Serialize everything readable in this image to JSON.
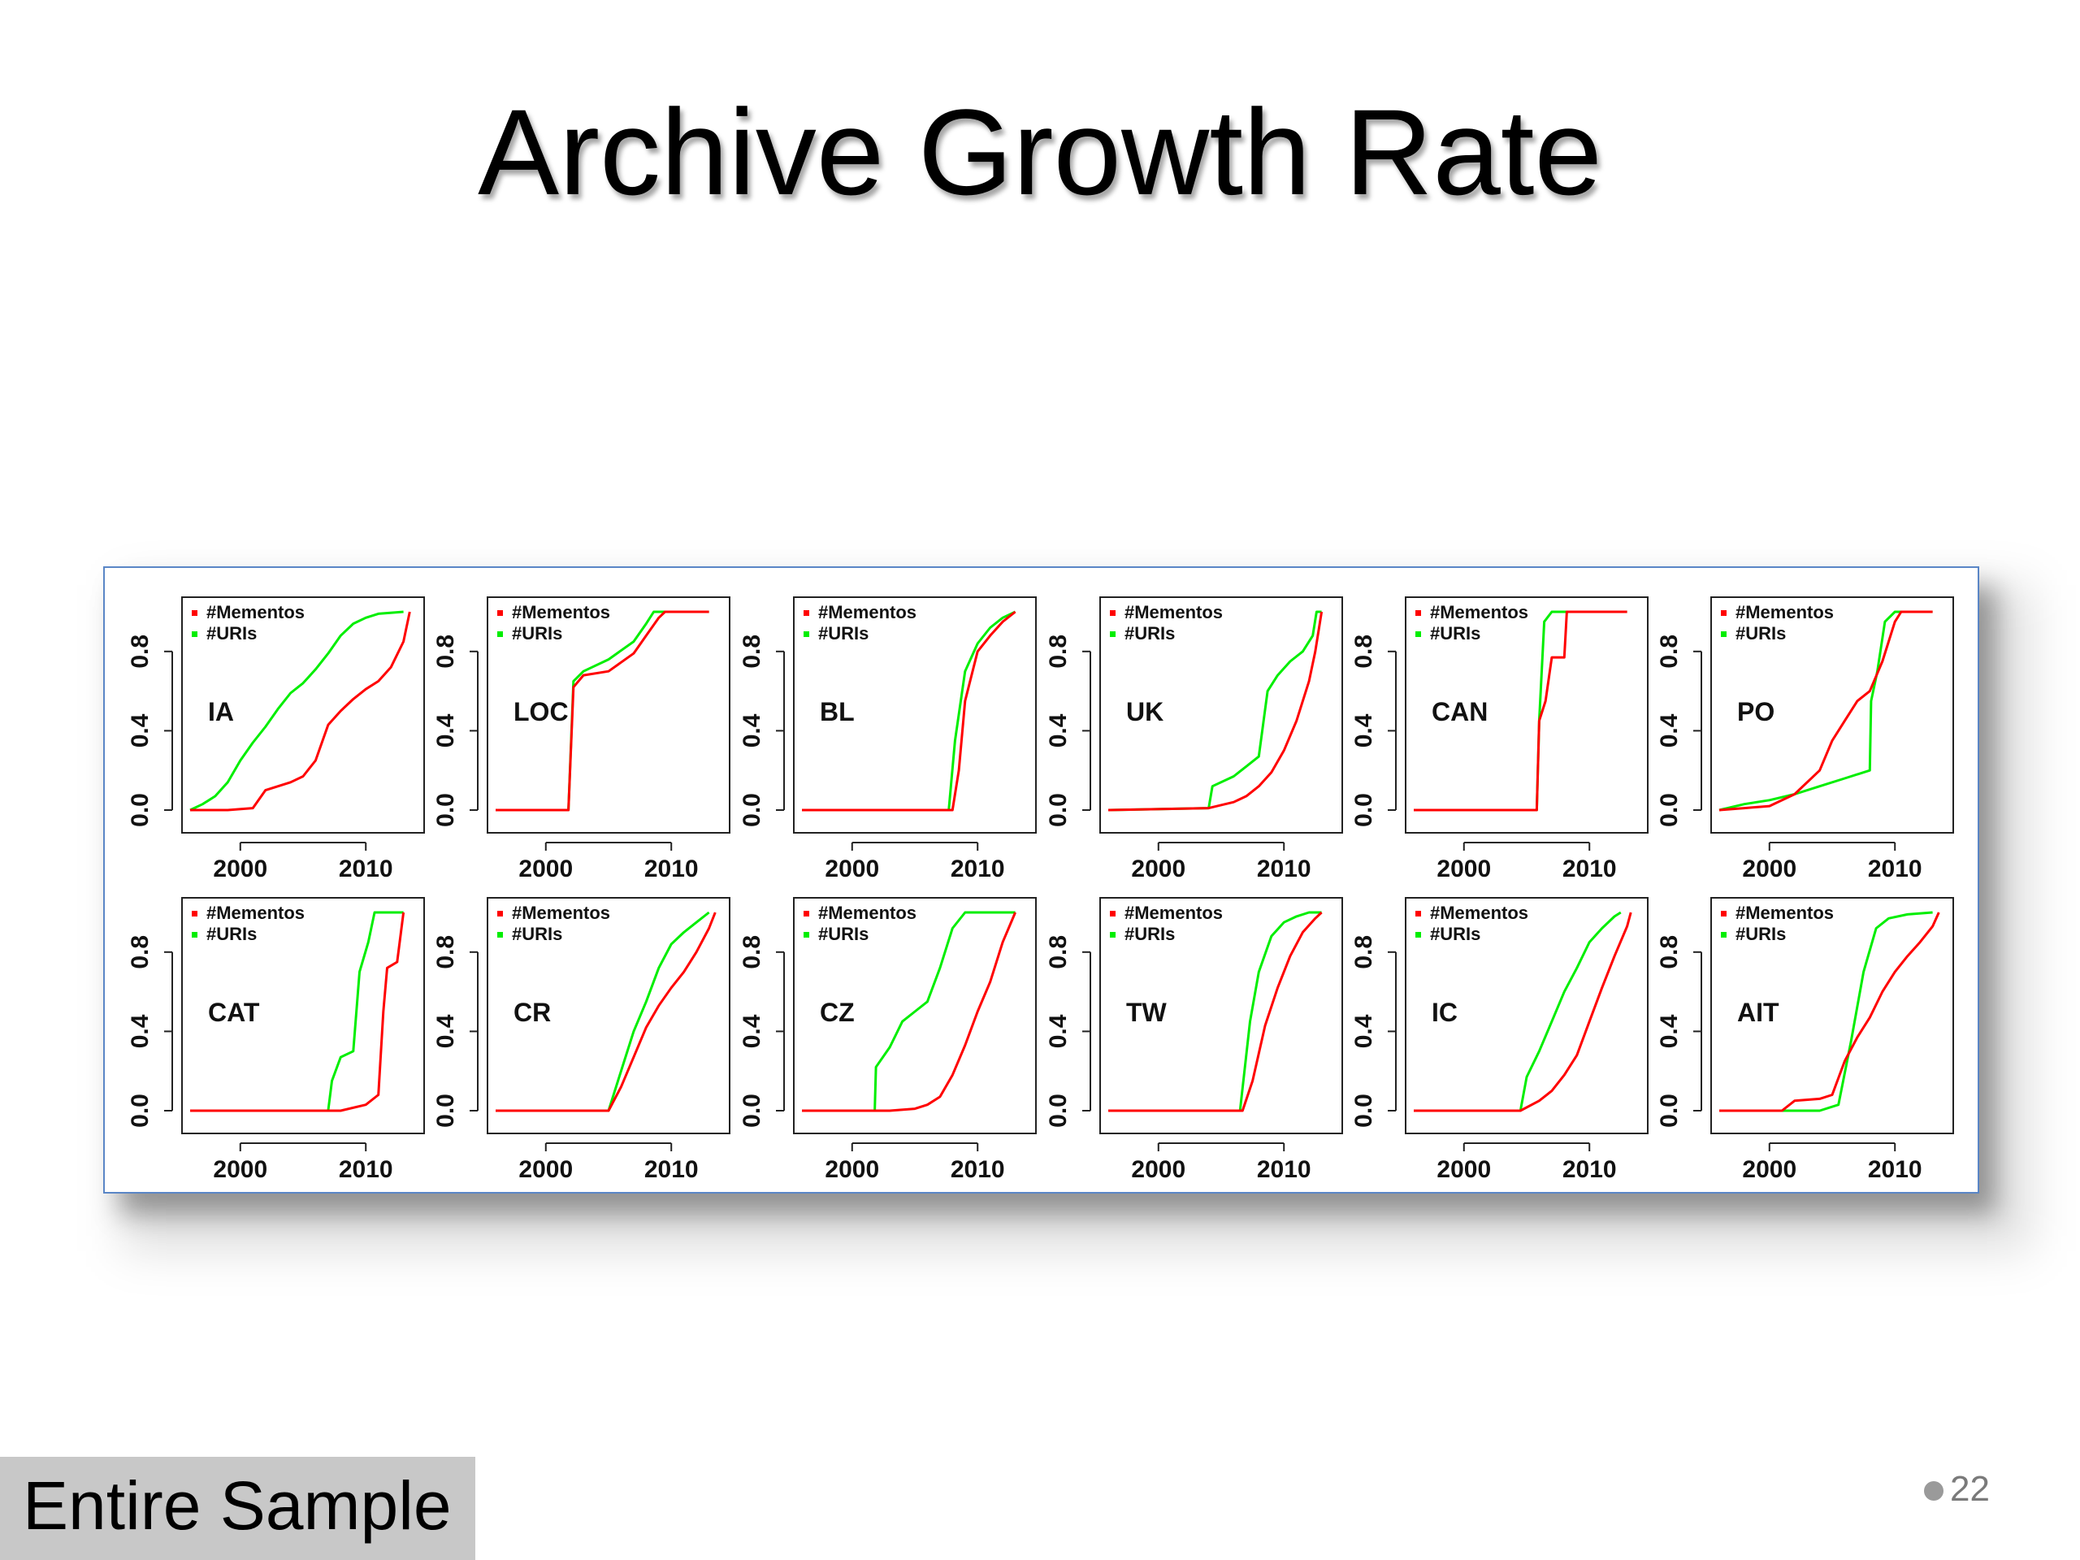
{
  "slide": {
    "title": "Archive Growth Rate",
    "footer_label": "Entire Sample",
    "page_number": "22"
  },
  "colors": {
    "mementos": "#ff0000",
    "uris": "#00ee00",
    "border": "#5a86c6"
  },
  "chart_data": {
    "type": "line",
    "layout": "small-multiples 2 rows x 6 columns",
    "legend": [
      "#Mementos",
      "#URIs"
    ],
    "x_ticks": [
      2000,
      2010
    ],
    "y_ticks": [
      "0.0",
      "0.4",
      "0.8"
    ],
    "xlim": [
      1996,
      2014
    ],
    "ylim": [
      0,
      1
    ],
    "panels": [
      {
        "label": "IA",
        "mementos": [
          [
            1996,
            0
          ],
          [
            1999,
            0
          ],
          [
            2001,
            0.01
          ],
          [
            2002,
            0.1
          ],
          [
            2004,
            0.14
          ],
          [
            2005,
            0.17
          ],
          [
            2006,
            0.25
          ],
          [
            2007,
            0.43
          ],
          [
            2008,
            0.5
          ],
          [
            2009,
            0.56
          ],
          [
            2010,
            0.61
          ],
          [
            2011,
            0.65
          ],
          [
            2012,
            0.72
          ],
          [
            2013,
            0.85
          ],
          [
            2013.5,
            1
          ]
        ],
        "uris": [
          [
            1996,
            0
          ],
          [
            1997,
            0.03
          ],
          [
            1998,
            0.07
          ],
          [
            1999,
            0.14
          ],
          [
            2000,
            0.25
          ],
          [
            2001,
            0.34
          ],
          [
            2002,
            0.42
          ],
          [
            2003,
            0.51
          ],
          [
            2004,
            0.59
          ],
          [
            2005,
            0.64
          ],
          [
            2006,
            0.71
          ],
          [
            2007,
            0.79
          ],
          [
            2008,
            0.88
          ],
          [
            2009,
            0.94
          ],
          [
            2010,
            0.97
          ],
          [
            2011,
            0.99
          ],
          [
            2013,
            1
          ]
        ]
      },
      {
        "label": "LOC",
        "mementos": [
          [
            1996,
            0
          ],
          [
            2001.8,
            0
          ],
          [
            2002.2,
            0.62
          ],
          [
            2003,
            0.68
          ],
          [
            2005,
            0.7
          ],
          [
            2007,
            0.79
          ],
          [
            2008,
            0.88
          ],
          [
            2009,
            0.97
          ],
          [
            2009.5,
            1
          ],
          [
            2013,
            1
          ]
        ],
        "uris": [
          [
            1996,
            0
          ],
          [
            2001.8,
            0
          ],
          [
            2002.2,
            0.65
          ],
          [
            2003,
            0.7
          ],
          [
            2005,
            0.76
          ],
          [
            2007,
            0.85
          ],
          [
            2008,
            0.94
          ],
          [
            2008.6,
            1
          ],
          [
            2013,
            1
          ]
        ]
      },
      {
        "label": "BL",
        "mementos": [
          [
            1996,
            0
          ],
          [
            2008,
            0
          ],
          [
            2008.5,
            0.2
          ],
          [
            2009,
            0.55
          ],
          [
            2010,
            0.8
          ],
          [
            2011,
            0.88
          ],
          [
            2012,
            0.95
          ],
          [
            2013,
            1
          ]
        ],
        "uris": [
          [
            1996,
            0
          ],
          [
            2007.7,
            0
          ],
          [
            2008.2,
            0.35
          ],
          [
            2009,
            0.7
          ],
          [
            2010,
            0.84
          ],
          [
            2011,
            0.92
          ],
          [
            2012,
            0.97
          ],
          [
            2013,
            1
          ]
        ]
      },
      {
        "label": "UK",
        "mementos": [
          [
            1996,
            0
          ],
          [
            2004,
            0.01
          ],
          [
            2006,
            0.04
          ],
          [
            2007,
            0.07
          ],
          [
            2008,
            0.12
          ],
          [
            2009,
            0.19
          ],
          [
            2010,
            0.3
          ],
          [
            2011,
            0.45
          ],
          [
            2012,
            0.65
          ],
          [
            2012.5,
            0.8
          ],
          [
            2013,
            1
          ]
        ],
        "uris": [
          [
            1996,
            0
          ],
          [
            2004,
            0.01
          ],
          [
            2004.3,
            0.12
          ],
          [
            2006,
            0.17
          ],
          [
            2007,
            0.22
          ],
          [
            2008,
            0.27
          ],
          [
            2008.7,
            0.6
          ],
          [
            2009.5,
            0.68
          ],
          [
            2010.5,
            0.75
          ],
          [
            2011.5,
            0.8
          ],
          [
            2012.3,
            0.88
          ],
          [
            2012.6,
            1
          ],
          [
            2013,
            1
          ]
        ]
      },
      {
        "label": "CAN",
        "mementos": [
          [
            1996,
            0
          ],
          [
            2005.8,
            0
          ],
          [
            2006,
            0.45
          ],
          [
            2006.5,
            0.55
          ],
          [
            2007,
            0.77
          ],
          [
            2008,
            0.77
          ],
          [
            2008.2,
            1
          ],
          [
            2013,
            1
          ]
        ],
        "uris": [
          [
            1996,
            0
          ],
          [
            2005.8,
            0
          ],
          [
            2006,
            0.45
          ],
          [
            2006.4,
            0.95
          ],
          [
            2007,
            1
          ],
          [
            2013,
            1
          ]
        ]
      },
      {
        "label": "PO",
        "mementos": [
          [
            1996,
            0
          ],
          [
            1998,
            0.01
          ],
          [
            2000,
            0.02
          ],
          [
            2002,
            0.08
          ],
          [
            2004,
            0.2
          ],
          [
            2005,
            0.35
          ],
          [
            2006,
            0.45
          ],
          [
            2007,
            0.55
          ],
          [
            2008,
            0.6
          ],
          [
            2009,
            0.75
          ],
          [
            2010,
            0.95
          ],
          [
            2010.5,
            1
          ],
          [
            2013,
            1
          ]
        ],
        "uris": [
          [
            1996,
            0
          ],
          [
            1998,
            0.03
          ],
          [
            2000,
            0.05
          ],
          [
            2002,
            0.08
          ],
          [
            2004,
            0.12
          ],
          [
            2006,
            0.16
          ],
          [
            2008,
            0.2
          ],
          [
            2008.1,
            0.55
          ],
          [
            2008.6,
            0.7
          ],
          [
            2009.2,
            0.95
          ],
          [
            2010,
            1
          ],
          [
            2013,
            1
          ]
        ]
      },
      {
        "label": "CAT",
        "mementos": [
          [
            1996,
            0
          ],
          [
            2008,
            0
          ],
          [
            2010,
            0.03
          ],
          [
            2011,
            0.08
          ],
          [
            2011.4,
            0.5
          ],
          [
            2011.7,
            0.72
          ],
          [
            2012.5,
            0.75
          ],
          [
            2013,
            1
          ]
        ],
        "uris": [
          [
            1996,
            0
          ],
          [
            2007,
            0
          ],
          [
            2007.3,
            0.15
          ],
          [
            2008,
            0.27
          ],
          [
            2009,
            0.3
          ],
          [
            2009.5,
            0.7
          ],
          [
            2010.2,
            0.85
          ],
          [
            2010.7,
            1
          ],
          [
            2013,
            1
          ]
        ]
      },
      {
        "label": "CR",
        "mementos": [
          [
            1996,
            0
          ],
          [
            2005,
            0
          ],
          [
            2006,
            0.12
          ],
          [
            2007,
            0.27
          ],
          [
            2008,
            0.42
          ],
          [
            2009,
            0.53
          ],
          [
            2010,
            0.62
          ],
          [
            2011,
            0.7
          ],
          [
            2012,
            0.8
          ],
          [
            2013,
            0.92
          ],
          [
            2013.5,
            1
          ]
        ],
        "uris": [
          [
            1996,
            0
          ],
          [
            2005,
            0
          ],
          [
            2006,
            0.2
          ],
          [
            2007,
            0.4
          ],
          [
            2008,
            0.55
          ],
          [
            2009,
            0.72
          ],
          [
            2010,
            0.84
          ],
          [
            2011,
            0.9
          ],
          [
            2012,
            0.95
          ],
          [
            2013,
            1
          ]
        ]
      },
      {
        "label": "CZ",
        "mementos": [
          [
            1996,
            0
          ],
          [
            2003,
            0
          ],
          [
            2005,
            0.01
          ],
          [
            2006,
            0.03
          ],
          [
            2007,
            0.07
          ],
          [
            2008,
            0.18
          ],
          [
            2009,
            0.33
          ],
          [
            2010,
            0.5
          ],
          [
            2011,
            0.65
          ],
          [
            2012,
            0.85
          ],
          [
            2013,
            1
          ]
        ],
        "uris": [
          [
            1996,
            0
          ],
          [
            2001.8,
            0
          ],
          [
            2001.9,
            0.22
          ],
          [
            2003,
            0.32
          ],
          [
            2004,
            0.45
          ],
          [
            2005,
            0.5
          ],
          [
            2006,
            0.55
          ],
          [
            2007,
            0.72
          ],
          [
            2008,
            0.92
          ],
          [
            2009,
            1
          ],
          [
            2013,
            1
          ]
        ]
      },
      {
        "label": "TW",
        "mementos": [
          [
            1996,
            0
          ],
          [
            2006.7,
            0
          ],
          [
            2007.5,
            0.15
          ],
          [
            2008.5,
            0.43
          ],
          [
            2009.5,
            0.62
          ],
          [
            2010.5,
            0.78
          ],
          [
            2011.5,
            0.9
          ],
          [
            2012.5,
            0.97
          ],
          [
            2013,
            1
          ]
        ],
        "uris": [
          [
            1996,
            0
          ],
          [
            2006.5,
            0
          ],
          [
            2007.3,
            0.45
          ],
          [
            2008,
            0.7
          ],
          [
            2009,
            0.88
          ],
          [
            2010,
            0.95
          ],
          [
            2011,
            0.98
          ],
          [
            2012,
            1
          ],
          [
            2013,
            1
          ]
        ]
      },
      {
        "label": "IC",
        "mementos": [
          [
            1996,
            0
          ],
          [
            2004.5,
            0
          ],
          [
            2006,
            0.05
          ],
          [
            2007,
            0.1
          ],
          [
            2008,
            0.18
          ],
          [
            2009,
            0.28
          ],
          [
            2010,
            0.45
          ],
          [
            2011,
            0.62
          ],
          [
            2012,
            0.78
          ],
          [
            2013,
            0.93
          ],
          [
            2013.3,
            1
          ]
        ],
        "uris": [
          [
            1996,
            0
          ],
          [
            2004.5,
            0
          ],
          [
            2005,
            0.17
          ],
          [
            2006,
            0.3
          ],
          [
            2007,
            0.45
          ],
          [
            2008,
            0.6
          ],
          [
            2009,
            0.72
          ],
          [
            2010,
            0.85
          ],
          [
            2011,
            0.92
          ],
          [
            2012,
            0.98
          ],
          [
            2012.5,
            1
          ]
        ]
      },
      {
        "label": "AIT",
        "mementos": [
          [
            1996,
            0
          ],
          [
            2001,
            0
          ],
          [
            2002,
            0.05
          ],
          [
            2004,
            0.06
          ],
          [
            2005,
            0.08
          ],
          [
            2006,
            0.25
          ],
          [
            2007,
            0.37
          ],
          [
            2008,
            0.47
          ],
          [
            2009,
            0.6
          ],
          [
            2010,
            0.7
          ],
          [
            2011,
            0.78
          ],
          [
            2012,
            0.85
          ],
          [
            2013,
            0.93
          ],
          [
            2013.5,
            1
          ]
        ],
        "uris": [
          [
            1996,
            0
          ],
          [
            2004,
            0
          ],
          [
            2005.5,
            0.03
          ],
          [
            2006.5,
            0.35
          ],
          [
            2007.5,
            0.7
          ],
          [
            2008.5,
            0.92
          ],
          [
            2009.5,
            0.97
          ],
          [
            2011,
            0.99
          ],
          [
            2013,
            1
          ]
        ]
      }
    ]
  }
}
